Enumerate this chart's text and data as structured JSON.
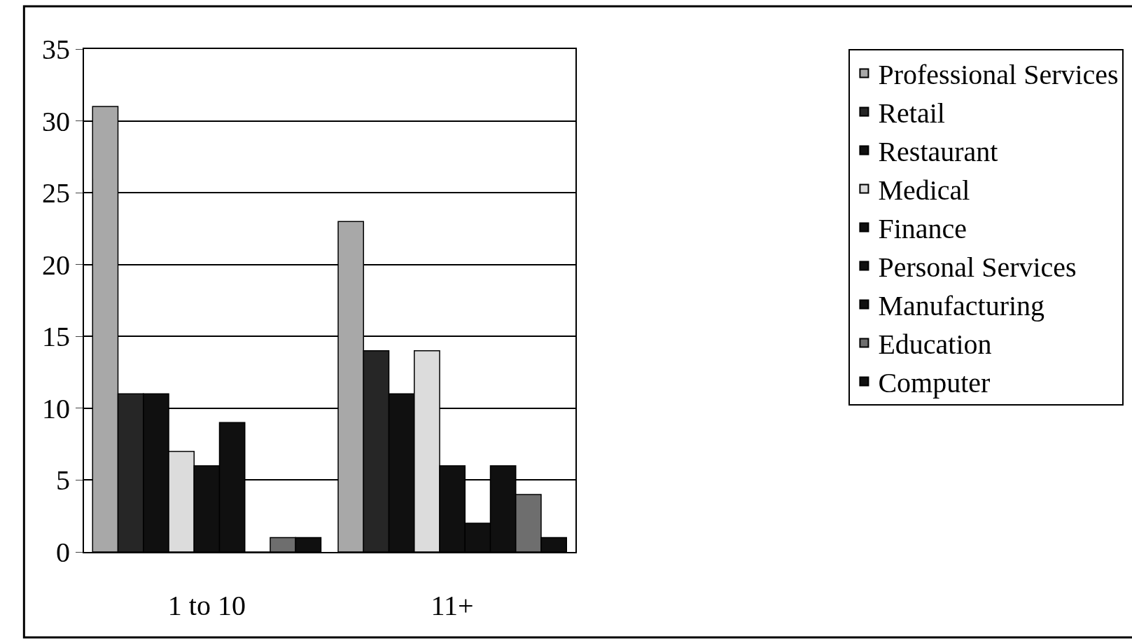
{
  "chart_data": {
    "type": "bar",
    "categories": [
      "1 to 10",
      "11+"
    ],
    "series": [
      {
        "name": "Professional Services",
        "color": "#a8a8a8",
        "values": [
          31,
          23
        ]
      },
      {
        "name": "Retail",
        "color": "#262626",
        "values": [
          11,
          14
        ]
      },
      {
        "name": "Restaurant",
        "color": "#101010",
        "values": [
          11,
          11
        ]
      },
      {
        "name": "Medical",
        "color": "#dcdcdc",
        "values": [
          7,
          14
        ]
      },
      {
        "name": "Finance",
        "color": "#101010",
        "values": [
          6,
          6
        ]
      },
      {
        "name": "Personal Services",
        "color": "#101010",
        "values": [
          9,
          2
        ]
      },
      {
        "name": "Manufacturing",
        "color": "#101010",
        "values": [
          0,
          6
        ]
      },
      {
        "name": "Education",
        "color": "#6e6e6e",
        "values": [
          1,
          4
        ]
      },
      {
        "name": "Computer",
        "color": "#101010",
        "values": [
          1,
          1
        ]
      }
    ],
    "ylim": [
      0,
      35
    ],
    "yticks": [
      0,
      5,
      10,
      15,
      20,
      25,
      30,
      35
    ],
    "grid": "y",
    "legend": "top right"
  }
}
